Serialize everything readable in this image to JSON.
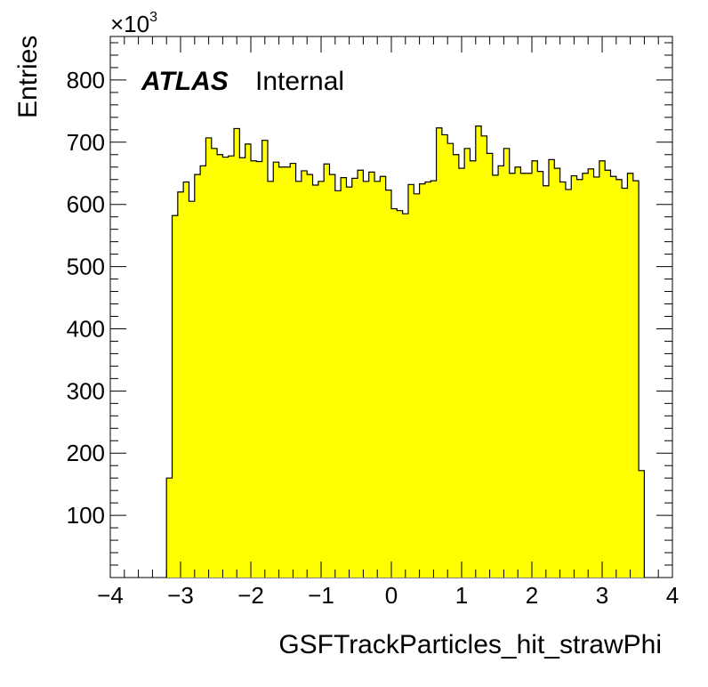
{
  "chart_data": {
    "type": "bar",
    "title": "",
    "xlabel": "GSFTrackParticles_hit_strawPhi",
    "ylabel": "Entries",
    "y_multiplier_label": "×10",
    "y_multiplier_exponent": "3",
    "xlim": [
      -4,
      4
    ],
    "ylim": [
      0,
      870
    ],
    "x_ticks": [
      -4,
      -3,
      -2,
      -1,
      0,
      1,
      2,
      3,
      4
    ],
    "x_tick_labels": [
      "−4",
      "−3",
      "−2",
      "−1",
      "0",
      "1",
      "2",
      "3",
      "4"
    ],
    "y_ticks": [
      100,
      200,
      300,
      400,
      500,
      600,
      700,
      800
    ],
    "y_tick_labels": [
      "100",
      "200",
      "300",
      "400",
      "500",
      "600",
      "700",
      "800"
    ],
    "grid": false,
    "legend": "none",
    "fill_color": "#ffff00",
    "line_color": "#000000",
    "annotations": {
      "atlas": "ATLAS",
      "status": "Internal"
    },
    "bin_edges_start": -3.2,
    "bin_width": 0.08,
    "values": [
      160,
      582,
      620,
      636,
      605,
      648,
      662,
      707,
      690,
      680,
      676,
      678,
      722,
      675,
      697,
      670,
      669,
      703,
      637,
      668,
      660,
      660,
      666,
      637,
      654,
      648,
      631,
      637,
      665,
      648,
      622,
      643,
      628,
      642,
      655,
      637,
      652,
      637,
      645,
      623,
      593,
      590,
      585,
      632,
      617,
      633,
      636,
      638,
      723,
      712,
      698,
      680,
      658,
      690,
      670,
      726,
      710,
      682,
      647,
      662,
      690,
      650,
      660,
      650,
      650,
      670,
      653,
      630,
      672,
      658,
      636,
      624,
      646,
      640,
      650,
      657,
      644,
      670,
      655,
      645,
      640,
      626,
      650,
      638,
      172
    ]
  }
}
